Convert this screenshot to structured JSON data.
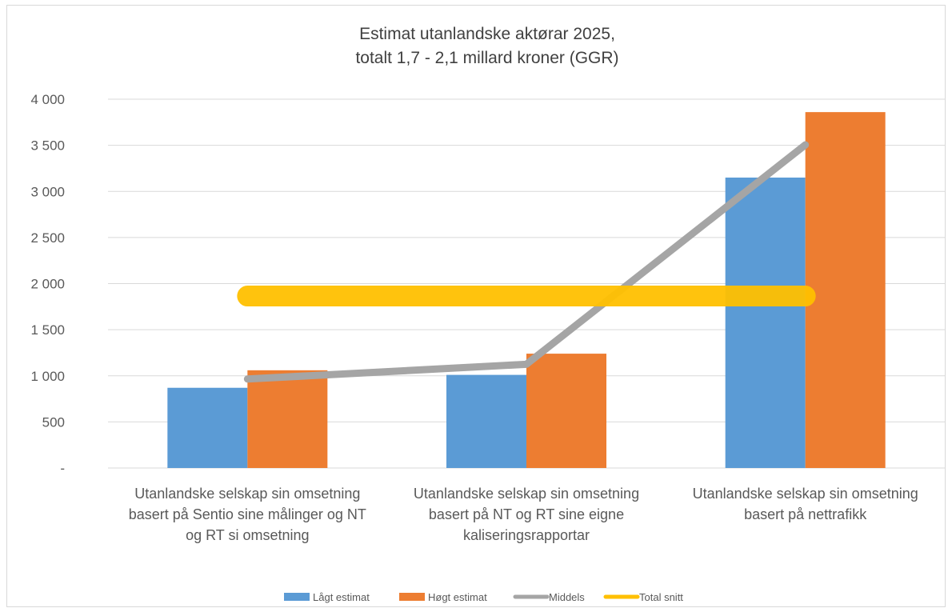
{
  "chart_data": {
    "type": "bar",
    "title_lines": [
      "Estimat utanlandske aktørar 2025,",
      "totalt 1,7 - 2,1 millard kroner (GGR)"
    ],
    "categories": [
      [
        "Utanlandske selskap sin omsetning",
        "basert på Sentio sine målinger og NT",
        "og RT si omsetning"
      ],
      [
        "Utanlandske selskap sin omsetning",
        "basert på NT og RT sine eigne",
        "kaliseringsrapportar"
      ],
      [
        "Utanlandske selskap sin omsetning",
        "basert på nettrafikk"
      ]
    ],
    "series": [
      {
        "name": "Lågt estimat",
        "kind": "bar",
        "color": "#5B9BD5",
        "values": [
          870,
          1010,
          3150
        ]
      },
      {
        "name": "Høgt estimat",
        "kind": "bar",
        "color": "#ED7D31",
        "values": [
          1060,
          1240,
          3860
        ]
      },
      {
        "name": "Middels",
        "kind": "line",
        "color": "#A5A5A5",
        "values": [
          965,
          1125,
          3505
        ]
      },
      {
        "name": "Total snitt",
        "kind": "line",
        "color": "#FFC000",
        "values": [
          1865,
          1865,
          1865
        ]
      }
    ],
    "y_ticks": [
      "-",
      "500",
      "1 000",
      "1 500",
      "2 000",
      "2 500",
      "3 000",
      "3 500",
      "4 000"
    ],
    "ylim": [
      0,
      4000
    ],
    "grid": true,
    "legend_position": "bottom"
  }
}
